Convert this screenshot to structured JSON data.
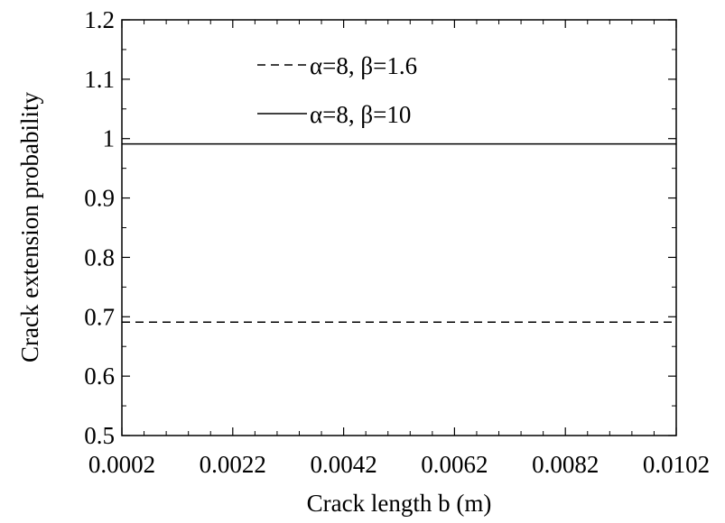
{
  "chart_data": {
    "type": "line",
    "title": "",
    "xlabel": "Crack length b (m)",
    "ylabel": "Crack extension probability",
    "xlim": [
      0.0002,
      0.0102
    ],
    "ylim": [
      0.5,
      1.2
    ],
    "x_ticks": [
      "0.0002",
      "0.0022",
      "0.0042",
      "0.0062",
      "0.0082",
      "0.0102"
    ],
    "y_ticks": [
      "0.5",
      "0.6",
      "0.7",
      "0.8",
      "0.9",
      "1",
      "1.1",
      "1.2"
    ],
    "grid": false,
    "legend_position": "top-center",
    "series": [
      {
        "name": "α=8, β=1.6",
        "line_style": "dashed",
        "color": "#000000",
        "x": [
          0.0002,
          0.0102
        ],
        "y": [
          0.691,
          0.691
        ]
      },
      {
        "name": "α=8, β=10",
        "line_style": "solid",
        "color": "#000000",
        "x": [
          0.0002,
          0.0102
        ],
        "y": [
          0.991,
          0.991
        ]
      }
    ]
  }
}
